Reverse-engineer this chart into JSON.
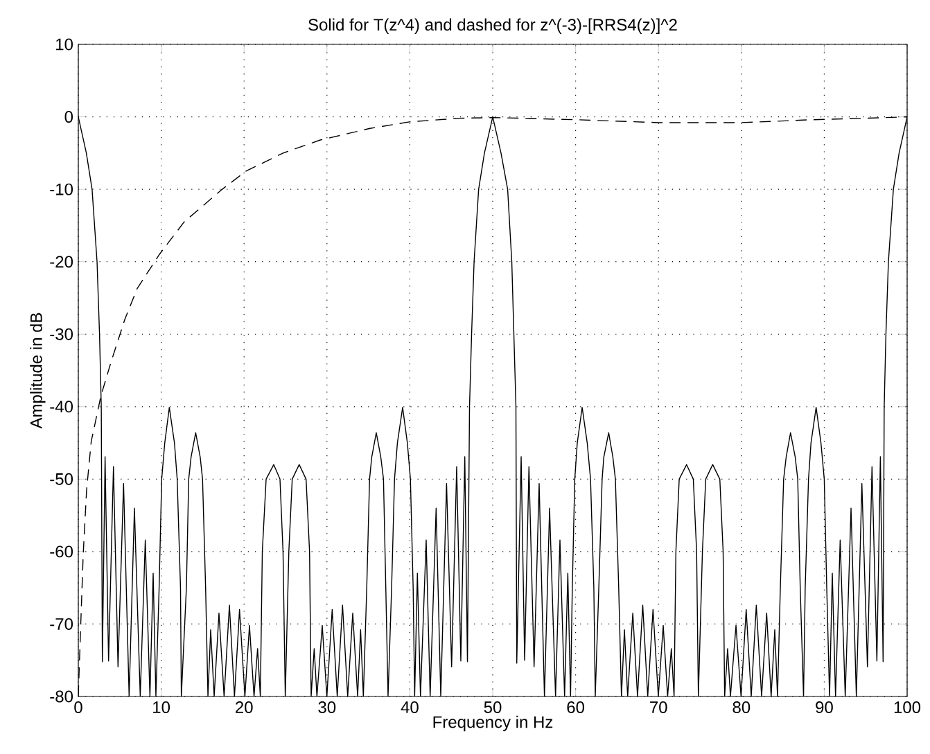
{
  "chart_data": {
    "type": "line",
    "title": "Solid for T(z^4) and dashed for z^(-3)-[RRS4(z)]^2",
    "xlabel": "Frequency in Hz",
    "ylabel": "Amplitude in dB",
    "xlim": [
      0,
      100
    ],
    "ylim": [
      -80,
      10
    ],
    "xticks": [
      0,
      10,
      20,
      30,
      40,
      50,
      60,
      70,
      80,
      90,
      100
    ],
    "yticks": [
      -80,
      -70,
      -60,
      -50,
      -40,
      -30,
      -20,
      -10,
      0,
      10
    ],
    "grid": true,
    "marker": "none",
    "series": [
      {
        "color": "#000000",
        "line_style": "solid",
        "x": [
          0,
          0.97,
          1.66,
          2.26,
          2.56,
          2.77,
          2.9,
          3.23,
          3.65,
          4.24,
          4.79,
          5.46,
          6.13,
          6.77,
          7.47,
          8.08,
          8.64,
          9.03,
          9.36,
          9.75,
          10.06,
          10.43,
          10.98,
          11.6,
          11.93,
          12.33,
          12.43,
          13.04,
          13.32,
          13.6,
          14.16,
          14.71,
          14.99,
          15.36,
          15.64,
          15.97,
          16.39,
          16.97,
          17.59,
          18.23,
          18.84,
          19.45,
          20.1,
          20.65,
          21.2,
          21.63,
          21.96,
          22.2,
          22.66,
          23.58,
          24.33,
          24.7,
          24.97,
          25.4,
          25.81,
          26.65,
          27.48,
          27.9,
          28.09,
          28.46,
          28.79,
          29.43,
          29.99,
          30.63,
          31.24,
          31.88,
          32.5,
          33.11,
          33.7,
          34.06,
          34.39,
          34.8,
          35.14,
          35.4,
          35.95,
          36.5,
          36.82,
          37.1,
          37.37,
          37.8,
          38.15,
          38.5,
          39.13,
          39.7,
          40.07,
          40.4,
          40.58,
          40.91,
          41.28,
          41.97,
          42.45,
          43.17,
          43.73,
          44.43,
          45.04,
          45.65,
          46.15,
          46.63,
          46.95,
          47.2,
          47.45,
          47.75,
          48.3,
          49.0,
          50,
          51.0,
          51.8,
          52.3,
          52.55,
          52.8,
          52.9,
          53.43,
          53.85,
          54.37,
          54.99,
          55.6,
          56.24,
          56.86,
          57.58,
          58.11,
          58.67,
          59.06,
          59.39,
          59.6,
          59.9,
          60.2,
          60.79,
          61.4,
          61.8,
          62.2,
          62.37,
          62.8,
          63.2,
          63.4,
          63.99,
          64.5,
          64.8,
          65.2,
          65.53,
          65.89,
          66.28,
          66.9,
          67.47,
          68.1,
          68.7,
          69.34,
          69.98,
          70.57,
          71.1,
          71.55,
          71.88,
          72.1,
          72.5,
          73.39,
          74.2,
          74.6,
          74.81,
          75.3,
          75.7,
          76.54,
          77.4,
          77.8,
          77.98,
          78.34,
          78.68,
          79.35,
          79.96,
          80.58,
          81.19,
          81.8,
          82.44,
          83.05,
          83.59,
          84.03,
          84.36,
          84.7,
          85.1,
          85.4,
          85.93,
          86.5,
          86.8,
          87.1,
          87.5,
          87.7,
          88.1,
          88.4,
          89.02,
          89.6,
          90.0,
          90.3,
          90.64,
          90.97,
          91.36,
          91.92,
          92.53,
          93.23,
          93.87,
          94.54,
          95.21,
          95.76,
          96.35,
          96.77,
          97.1,
          97.23,
          97.44,
          97.74,
          98.34,
          99.03,
          100
        ],
        "values": [
          0,
          -5,
          -10,
          -20,
          -30,
          -40,
          -75.2,
          -46.9,
          -75.1,
          -48.3,
          -75.9,
          -50.6,
          -80,
          -54,
          -80,
          -58.4,
          -80,
          -63,
          -80,
          -65,
          -50,
          -45,
          -40.1,
          -45,
          -50,
          -65,
          -80,
          -65,
          -50,
          -47,
          -43.6,
          -47,
          -50,
          -65,
          -80,
          -70.8,
          -80,
          -68.5,
          -80,
          -67.4,
          -80,
          -68,
          -80,
          -70.2,
          -80,
          -73.4,
          -80,
          -60,
          -50,
          -48,
          -50,
          -60,
          -80,
          -60,
          -50,
          -48,
          -50,
          -60,
          -80,
          -73.4,
          -80,
          -70.2,
          -80,
          -68,
          -80,
          -67.4,
          -80,
          -68.5,
          -80,
          -70.8,
          -80,
          -65,
          -50,
          -47,
          -43.6,
          -47,
          -50,
          -65,
          -80,
          -65,
          -50,
          -45,
          -40.1,
          -45,
          -50,
          -65,
          -80,
          -63,
          -80,
          -58.4,
          -80,
          -54,
          -80,
          -50.6,
          -75.9,
          -48.3,
          -75.1,
          -46.9,
          -75.2,
          -40,
          -30,
          -20,
          -10,
          -5,
          0,
          -5,
          -10,
          -20,
          -30,
          -40,
          -75.4,
          -46.9,
          -75,
          -48.3,
          -75.9,
          -50.6,
          -80,
          -54,
          -80,
          -58.4,
          -80,
          -63,
          -80,
          -65,
          -50,
          -45,
          -40.1,
          -45,
          -50,
          -65,
          -80,
          -65,
          -50,
          -47,
          -43.6,
          -47,
          -50,
          -65,
          -80,
          -70.8,
          -80,
          -68.5,
          -80,
          -67.4,
          -80,
          -68,
          -80,
          -70.2,
          -80,
          -73.4,
          -80,
          -60,
          -50,
          -48,
          -50,
          -60,
          -80,
          -60,
          -50,
          -48,
          -50,
          -60,
          -80,
          -73.4,
          -80,
          -70.2,
          -80,
          -68,
          -80,
          -67.4,
          -80,
          -68.5,
          -80,
          -70.8,
          -80,
          -65,
          -50,
          -47,
          -43.6,
          -47,
          -50,
          -65,
          -80,
          -65,
          -50,
          -45,
          -40.1,
          -45,
          -50,
          -65,
          -80,
          -63,
          -80,
          -58.4,
          -80,
          -54,
          -80,
          -50.6,
          -75.9,
          -48.3,
          -75.1,
          -46.9,
          -75.2,
          -40,
          -30,
          -20,
          -10,
          -5,
          0
        ]
      },
      {
        "color": "#000000",
        "line_style": "dashed",
        "x": [
          0,
          0.17,
          0.59,
          1.0,
          1.56,
          2.73,
          3.96,
          5.6,
          7.1,
          9.78,
          12.77,
          17.25,
          20.23,
          24.71,
          29.2,
          35.2,
          39.94,
          45.9,
          50.06,
          60.07,
          70,
          75.8,
          79.96,
          84.4,
          88.5,
          95,
          100
        ],
        "values": [
          -80,
          -74.1,
          -60.4,
          -51.5,
          -44.8,
          -38.5,
          -33.8,
          -28,
          -23.7,
          -19,
          -14.5,
          -10.1,
          -7.5,
          -5,
          -3.2,
          -1.6,
          -0.7,
          -0.2,
          -0.1,
          -0.4,
          -0.8,
          -0.8,
          -0.8,
          -0.6,
          -0.4,
          -0.2,
          0
        ]
      }
    ]
  }
}
